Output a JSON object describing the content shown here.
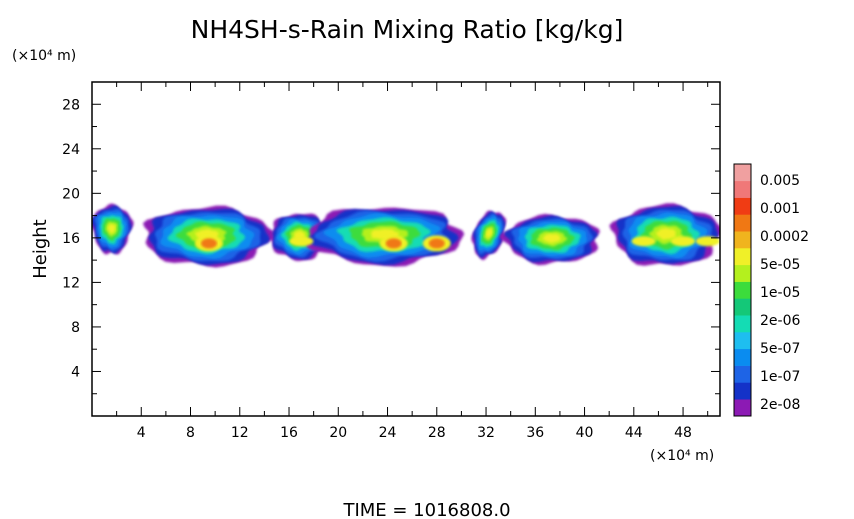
{
  "chart_data": {
    "type": "heatmap",
    "title": "NH4SH-s-Rain Mixing Ratio [kg/kg]",
    "xlabel": "",
    "x_unit": "(×10⁴ m)",
    "ylabel": "Height",
    "y_unit": "(×10⁴ m)",
    "xlim": [
      0,
      51
    ],
    "ylim": [
      0,
      30
    ],
    "x_ticks": [
      "4",
      "8",
      "12",
      "16",
      "20",
      "24",
      "28",
      "32",
      "36",
      "40",
      "44",
      "48"
    ],
    "y_ticks": [
      "4",
      "8",
      "12",
      "16",
      "20",
      "24",
      "28"
    ],
    "colorbar": {
      "levels": [
        {
          "label": "2e-08",
          "color": "#8c1ab4"
        },
        {
          "label": "1e-07",
          "color": "#1432c8"
        },
        {
          "label": "5e-07",
          "color": "#0a8cf0"
        },
        {
          "label": "2e-06",
          "color": "#14dcb4"
        },
        {
          "label": "1e-05",
          "color": "#3cdc3c"
        },
        {
          "label": "5e-05",
          "color": "#b4f01e"
        },
        {
          "label": "0.0002",
          "color": "#f0b41e"
        },
        {
          "label": "0.001",
          "color": "#f03c14"
        },
        {
          "label": "0.005",
          "color": "#f07878"
        }
      ],
      "extra_colors": [
        "#1ebef0",
        "#1e64e6",
        "#14c878",
        "#f0f028",
        "#f07814",
        "#f0a0a0"
      ]
    },
    "cloud_band": {
      "y_bottom": 13.5,
      "y_top": 19.8,
      "core_y": 15.5
    },
    "max_core_x": [
      9.5,
      24.5,
      28
    ]
  },
  "footer": {
    "time_label": "TIME  =  1016808.0"
  }
}
